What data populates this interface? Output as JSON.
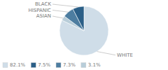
{
  "chart_data": {
    "type": "pie",
    "categories": [
      "WHITE",
      "ASIAN",
      "HISPANIC",
      "BLACK"
    ],
    "values": [
      82.1,
      3.1,
      7.3,
      7.5
    ],
    "colors": [
      "#cfdde8",
      "#b8cdd9",
      "#4d7da0",
      "#2b5f87"
    ],
    "value_labels": [
      "82.1%",
      "3.1%",
      "7.3%",
      "7.5%"
    ],
    "legend": "lower left"
  }
}
